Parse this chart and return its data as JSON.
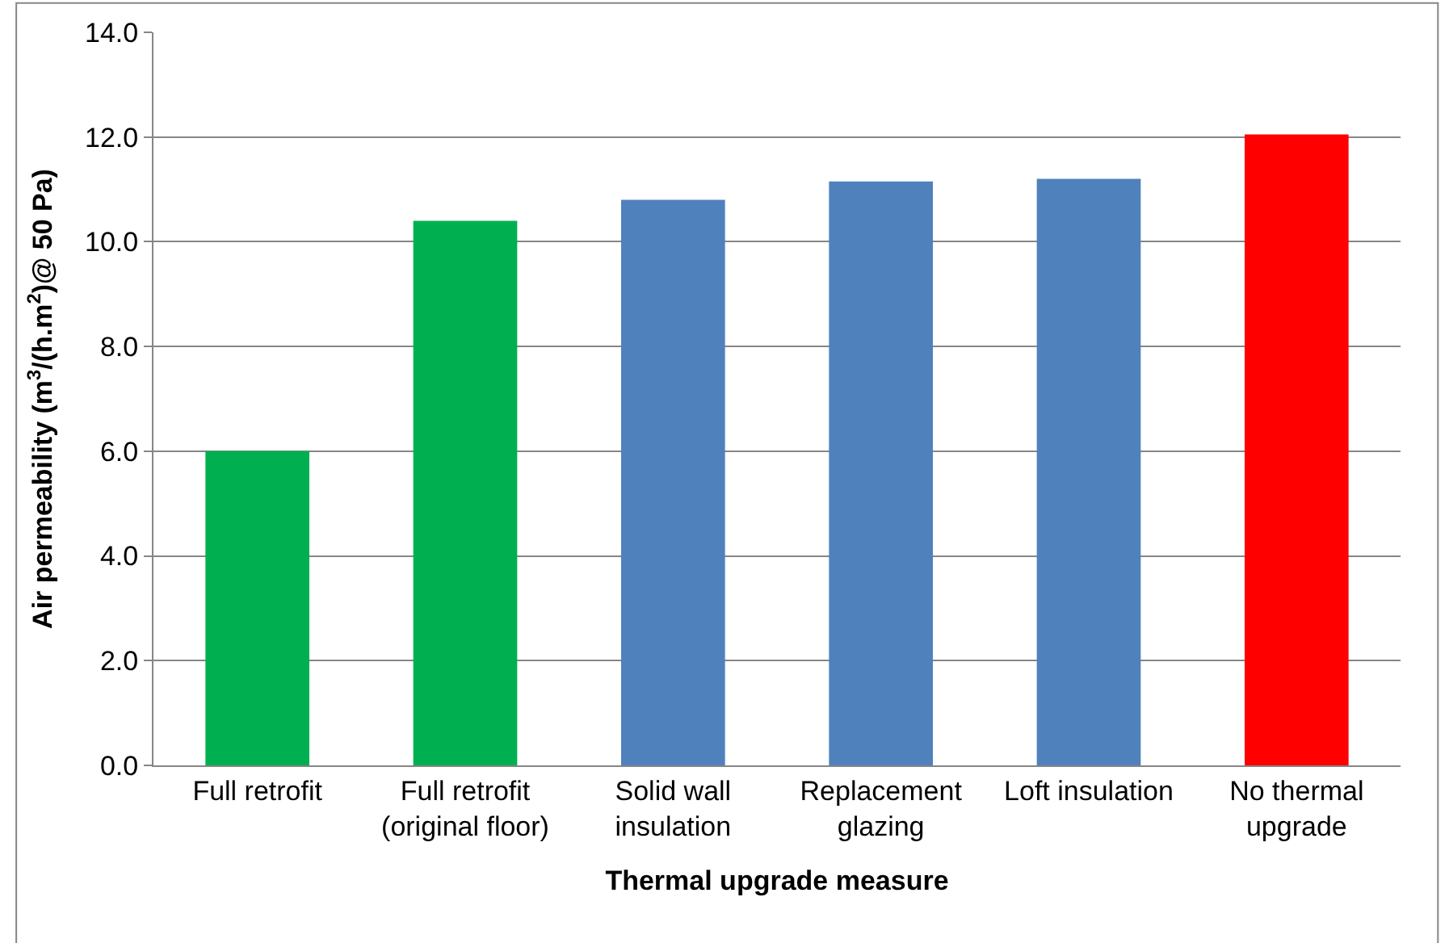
{
  "chart_data": {
    "type": "bar",
    "xlabel": "Thermal upgrade measure",
    "ylabel": "Air permeability (m$^{3}$/(h.m$^{2}$)@ 50 Pa)",
    "categories": [
      "Full retrofit",
      "Full retrofit (original floor)",
      "Solid wall insulation",
      "Replacement glazing",
      "Loft insulation",
      "No thermal upgrade"
    ],
    "values": [
      6.0,
      10.4,
      10.8,
      11.15,
      11.2,
      12.05
    ],
    "colors": [
      "#00b050",
      "#00b050",
      "#4f81bd",
      "#4f81bd",
      "#4f81bd",
      "#ff0000"
    ],
    "ylim": [
      0,
      14
    ],
    "yticks": [
      {
        "value": 0,
        "label": "0.0"
      },
      {
        "value": 2,
        "label": "2.0"
      },
      {
        "value": 4,
        "label": "4.0"
      },
      {
        "value": 6,
        "label": "6.0"
      },
      {
        "value": 8,
        "label": "8.0"
      },
      {
        "value": 10,
        "label": "10.0"
      },
      {
        "value": 12,
        "label": "12.0"
      },
      {
        "value": 14,
        "label": "14.0"
      }
    ],
    "grid": "y"
  }
}
